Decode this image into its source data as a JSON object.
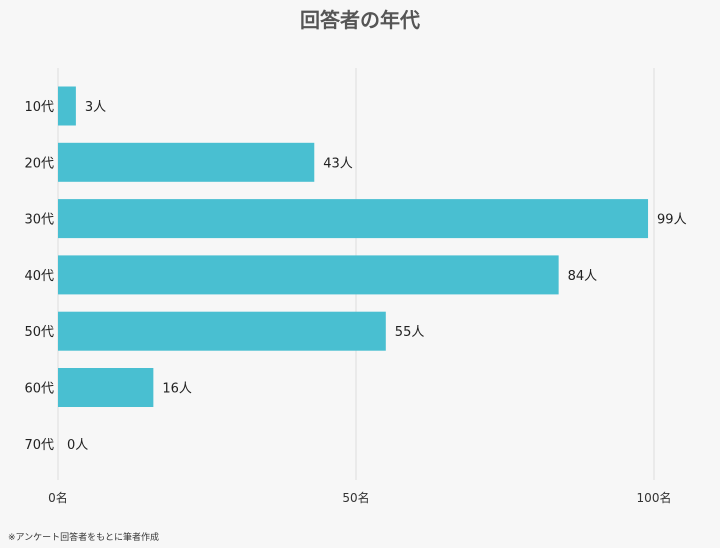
{
  "title": "回答者の年代",
  "source_note": "※アンケート回答者をもとに筆者作成",
  "colors": {
    "bar": "#49bfd1",
    "grid": "#dddddd",
    "background": "#f7f7f7"
  },
  "chart_data": {
    "type": "bar",
    "orientation": "horizontal",
    "title": "回答者の年代",
    "categories": [
      "10代",
      "20代",
      "30代",
      "40代",
      "50代",
      "60代",
      "70代"
    ],
    "values": [
      3,
      43,
      99,
      84,
      55,
      16,
      0
    ],
    "data_labels": [
      "3人",
      "43人",
      "99人",
      "84人",
      "55人",
      "16人",
      "0人"
    ],
    "xlim": [
      0,
      100
    ],
    "xticks": [
      0,
      50,
      100
    ],
    "xtick_labels": [
      "0名",
      "50名",
      "100名"
    ],
    "grid": true
  }
}
